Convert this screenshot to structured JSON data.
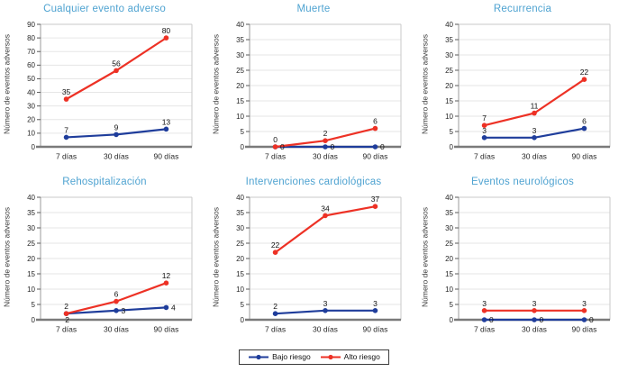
{
  "figure": {
    "ylabel": "Número de eventos adversos",
    "title_color": "#4fa3d1",
    "grid_color": "#e6e6e6",
    "axis_color": "#7a7a7a"
  },
  "legend": {
    "items": [
      {
        "label": "Bajo riesgo",
        "color": "#1f3d9b"
      },
      {
        "label": "Alto riesgo",
        "color": "#ed3125"
      }
    ]
  },
  "chart_data": [
    {
      "type": "line",
      "title": "Cualquier evento adverso",
      "categories": [
        "7 días",
        "30 días",
        "90 días"
      ],
      "ylabel": "Número de eventos adversos",
      "ylim": [
        0,
        90
      ],
      "ytick_step": 10,
      "grid": true,
      "series": [
        {
          "name": "Bajo riesgo",
          "values": [
            7,
            9,
            13
          ],
          "label_pos": [
            "above",
            "above",
            "above"
          ]
        },
        {
          "name": "Alto riesgo",
          "values": [
            35,
            56,
            80
          ],
          "label_pos": [
            "above",
            "above",
            "above"
          ]
        }
      ]
    },
    {
      "type": "line",
      "title": "Muerte",
      "categories": [
        "7 días",
        "30 días",
        "90 días"
      ],
      "ylabel": "Número de eventos adversos",
      "ylim": [
        0,
        40
      ],
      "ytick_step": 5,
      "grid": true,
      "series": [
        {
          "name": "Bajo riesgo",
          "values": [
            0,
            0,
            0
          ],
          "label_pos": [
            "right",
            "right",
            "right"
          ]
        },
        {
          "name": "Alto riesgo",
          "values": [
            0,
            2,
            6
          ],
          "label_pos": [
            "above",
            "above",
            "above"
          ]
        }
      ]
    },
    {
      "type": "line",
      "title": "Recurrencia",
      "categories": [
        "7 días",
        "30 días",
        "90 días"
      ],
      "ylabel": "Número de eventos adversos",
      "ylim": [
        0,
        40
      ],
      "ytick_step": 5,
      "grid": true,
      "series": [
        {
          "name": "Bajo riesgo",
          "values": [
            3,
            3,
            6
          ],
          "label_pos": [
            "above",
            "above",
            "above"
          ]
        },
        {
          "name": "Alto riesgo",
          "values": [
            7,
            11,
            22
          ],
          "label_pos": [
            "above",
            "above",
            "above"
          ]
        }
      ]
    },
    {
      "type": "line",
      "title": "Rehospitalización",
      "categories": [
        "7 días",
        "30 días",
        "90 días"
      ],
      "ylabel": "Número de eventos adversos",
      "ylim": [
        0,
        40
      ],
      "ytick_step": 5,
      "grid": true,
      "series": [
        {
          "name": "Bajo riesgo",
          "values": [
            2,
            3,
            4
          ],
          "label_pos": [
            "below",
            "right",
            "right"
          ]
        },
        {
          "name": "Alto riesgo",
          "values": [
            2,
            6,
            12
          ],
          "label_pos": [
            "above",
            "above",
            "above"
          ]
        }
      ]
    },
    {
      "type": "line",
      "title": "Intervenciones cardiológicas",
      "categories": [
        "7 días",
        "30 días",
        "90 días"
      ],
      "ylabel": "Número de eventos adversos",
      "ylim": [
        0,
        40
      ],
      "ytick_step": 5,
      "grid": true,
      "series": [
        {
          "name": "Bajo riesgo",
          "values": [
            2,
            3,
            3
          ],
          "label_pos": [
            "above",
            "above",
            "above"
          ]
        },
        {
          "name": "Alto riesgo",
          "values": [
            22,
            34,
            37
          ],
          "label_pos": [
            "above",
            "above",
            "above"
          ]
        }
      ]
    },
    {
      "type": "line",
      "title": "Eventos neurológicos",
      "categories": [
        "7 días",
        "30 días",
        "90 días"
      ],
      "ylabel": "Número de eventos adversos",
      "ylim": [
        0,
        40
      ],
      "ytick_step": 5,
      "grid": true,
      "series": [
        {
          "name": "Bajo riesgo",
          "values": [
            0,
            0,
            0
          ],
          "label_pos": [
            "right",
            "right",
            "right"
          ]
        },
        {
          "name": "Alto riesgo",
          "values": [
            3,
            3,
            3
          ],
          "label_pos": [
            "above",
            "above",
            "above"
          ]
        }
      ]
    }
  ]
}
